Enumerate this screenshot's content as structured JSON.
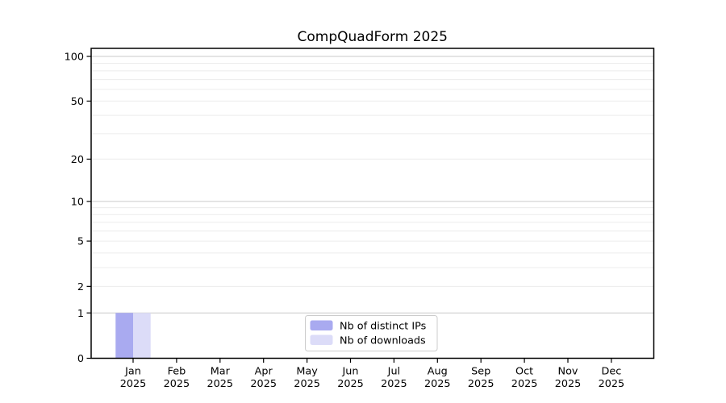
{
  "title": "CompQuadForm 2025",
  "colors": {
    "background": "#ffffff",
    "axis": "#000000",
    "grid_major": "#c9c9c9",
    "grid_minor": "#ececec",
    "legend_border": "#cccccc",
    "distinct_ips": "#a9aaf0",
    "downloads": "#dcdcf8"
  },
  "chart_data": {
    "type": "bar",
    "title": "CompQuadForm 2025",
    "categories": [
      {
        "month": "Jan",
        "year": "2025"
      },
      {
        "month": "Feb",
        "year": "2025"
      },
      {
        "month": "Mar",
        "year": "2025"
      },
      {
        "month": "Apr",
        "year": "2025"
      },
      {
        "month": "May",
        "year": "2025"
      },
      {
        "month": "Jun",
        "year": "2025"
      },
      {
        "month": "Jul",
        "year": "2025"
      },
      {
        "month": "Aug",
        "year": "2025"
      },
      {
        "month": "Sep",
        "year": "2025"
      },
      {
        "month": "Oct",
        "year": "2025"
      },
      {
        "month": "Nov",
        "year": "2025"
      },
      {
        "month": "Dec",
        "year": "2025"
      }
    ],
    "series": [
      {
        "name": "Nb of distinct IPs",
        "color": "#a9aaf0",
        "values": [
          1,
          0,
          0,
          0,
          0,
          0,
          0,
          0,
          0,
          0,
          0,
          0
        ]
      },
      {
        "name": "Nb of downloads",
        "color": "#dcdcf8",
        "values": [
          1,
          0,
          0,
          0,
          0,
          0,
          0,
          0,
          0,
          0,
          0,
          0
        ]
      }
    ],
    "xlabel": "",
    "ylabel": "",
    "y_axis": {
      "scale": "log1p",
      "tick_values": [
        0,
        1,
        2,
        5,
        10,
        20,
        50,
        100
      ],
      "tick_labels": [
        "0",
        "1",
        "2",
        "5",
        "10",
        "20",
        "50",
        "100"
      ],
      "major_gridlines": [
        1,
        10,
        100
      ],
      "minor_gridlines": [
        2,
        3,
        4,
        5,
        6,
        7,
        8,
        9,
        20,
        30,
        40,
        50,
        60,
        70,
        80,
        90
      ],
      "ylim": [
        0,
        113
      ]
    },
    "legend": {
      "position": "lower center inside",
      "entries": [
        "Nb of distinct IPs",
        "Nb of downloads"
      ]
    },
    "grid": true
  }
}
